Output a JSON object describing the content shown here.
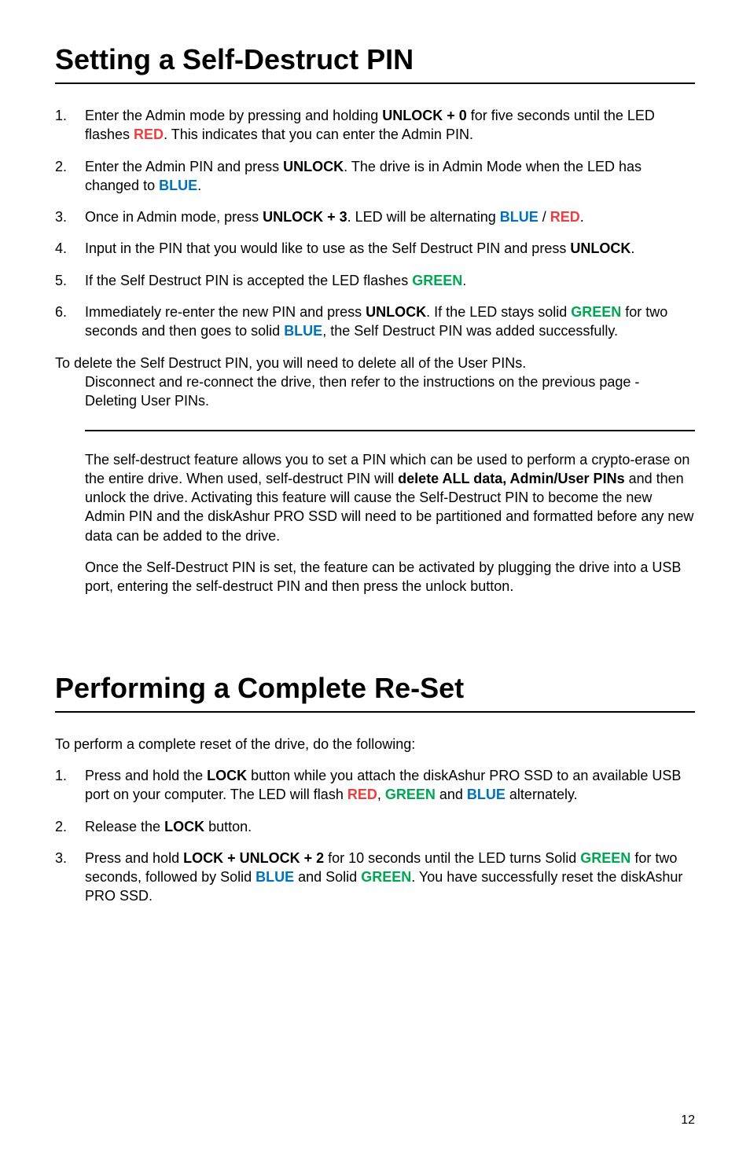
{
  "colors": {
    "red": "#ef3e42",
    "green": "#00a651",
    "blue": "#0071bc",
    "text": "#000000",
    "bg": "#ffffff",
    "rule": "#000000"
  },
  "typography": {
    "body_family": "Arial, Helvetica, sans-serif",
    "body_size_pt": 14,
    "h1_size_pt": 27,
    "line_height": 1.35
  },
  "page_number": "12",
  "sec1": {
    "title": "Setting a Self-Destruct PIN",
    "steps": [
      {
        "num": "1.",
        "runs": [
          {
            "t": "Enter the Admin mode by pressing and holding "
          },
          {
            "t": "UNLOCK + 0",
            "b": true
          },
          {
            "t": " for five seconds until the LED flashes "
          },
          {
            "t": "RED",
            "c": "red"
          },
          {
            "t": ". This indicates that you can enter the Admin PIN."
          }
        ]
      },
      {
        "num": "2.",
        "runs": [
          {
            "t": "Enter the Admin PIN and press "
          },
          {
            "t": "UNLOCK",
            "b": true
          },
          {
            "t": ". The drive is in Admin Mode when the LED has changed to "
          },
          {
            "t": "BLUE",
            "c": "blue"
          },
          {
            "t": "."
          }
        ]
      },
      {
        "num": "3.",
        "runs": [
          {
            "t": "Once in Admin mode, press "
          },
          {
            "t": "UNLOCK + 3",
            "b": true
          },
          {
            "t": ". LED will be alternating "
          },
          {
            "t": "BLUE",
            "c": "blue"
          },
          {
            "t": " / "
          },
          {
            "t": "RED",
            "c": "red"
          },
          {
            "t": "."
          }
        ]
      },
      {
        "num": "4.",
        "runs": [
          {
            "t": "Input in the PIN that you would like to use as the Self Destruct PIN and press "
          },
          {
            "t": "UNLOCK",
            "b": true
          },
          {
            "t": "."
          }
        ]
      },
      {
        "num": "5.",
        "runs": [
          {
            "t": "If the Self Destruct PIN is accepted the LED flashes "
          },
          {
            "t": "GREEN",
            "c": "green"
          },
          {
            "t": "."
          }
        ]
      },
      {
        "num": "6.",
        "runs": [
          {
            "t": "Immediately re-enter the new PIN and press "
          },
          {
            "t": "UNLOCK",
            "b": true
          },
          {
            "t": ". If the LED stays solid "
          },
          {
            "t": "GREEN",
            "c": "green"
          },
          {
            "t": " for two seconds and then goes to solid "
          },
          {
            "t": "BLUE",
            "c": "blue"
          },
          {
            "t": ", the Self Destruct PIN was added successfully."
          }
        ]
      }
    ],
    "delete_note_lead": "To delete the Self Destruct PIN, you will need to delete all of the User PINs.",
    "delete_note_rest": "Disconnect and re-connect the drive, then refer to the instructions on the previous page - Deleting User PINs.",
    "info1_runs": [
      {
        "t": "The self-destruct feature allows you to set a PIN which can be used to perform a crypto-erase on the entire drive. When used, self-destruct PIN will "
      },
      {
        "t": "delete ALL data, Admin/User PINs",
        "b": true
      },
      {
        "t": " and then unlock the drive. Activating this feature will cause the Self-Destruct PIN to become the new Admin PIN and the diskAshur PRO SSD will need to be partitioned and formatted before any new data can be added to the drive."
      }
    ],
    "info2": "Once the Self-Destruct PIN is set, the feature can be activated by plugging the drive into a USB port, entering the self-destruct PIN and then press the unlock button."
  },
  "sec2": {
    "title": "Performing a Complete Re-Set",
    "intro": "To perform a complete reset of the drive, do the following:",
    "steps": [
      {
        "num": "1.",
        "runs": [
          {
            "t": "Press and hold the "
          },
          {
            "t": "LOCK",
            "b": true
          },
          {
            "t": " button while you attach the diskAshur PRO SSD to an available USB port on your computer. The LED will flash "
          },
          {
            "t": "RED",
            "c": "red"
          },
          {
            "t": ", "
          },
          {
            "t": "GREEN",
            "c": "green"
          },
          {
            "t": " and "
          },
          {
            "t": "BLUE",
            "c": "blue"
          },
          {
            "t": " alternately."
          }
        ]
      },
      {
        "num": "2.",
        "runs": [
          {
            "t": "Release the "
          },
          {
            "t": "LOCK",
            "b": true
          },
          {
            "t": " button."
          }
        ]
      },
      {
        "num": "3.",
        "runs": [
          {
            "t": "Press and hold "
          },
          {
            "t": "LOCK + UNLOCK + 2",
            "b": true
          },
          {
            "t": " for 10 seconds until the LED turns Solid "
          },
          {
            "t": "GREEN",
            "c": "green"
          },
          {
            "t": " for two seconds, followed by Solid "
          },
          {
            "t": "BLUE",
            "c": "blue"
          },
          {
            "t": " and Solid "
          },
          {
            "t": "GREEN",
            "c": "green"
          },
          {
            "t": ". You have successfully reset the diskAshur PRO SSD."
          }
        ]
      }
    ]
  }
}
